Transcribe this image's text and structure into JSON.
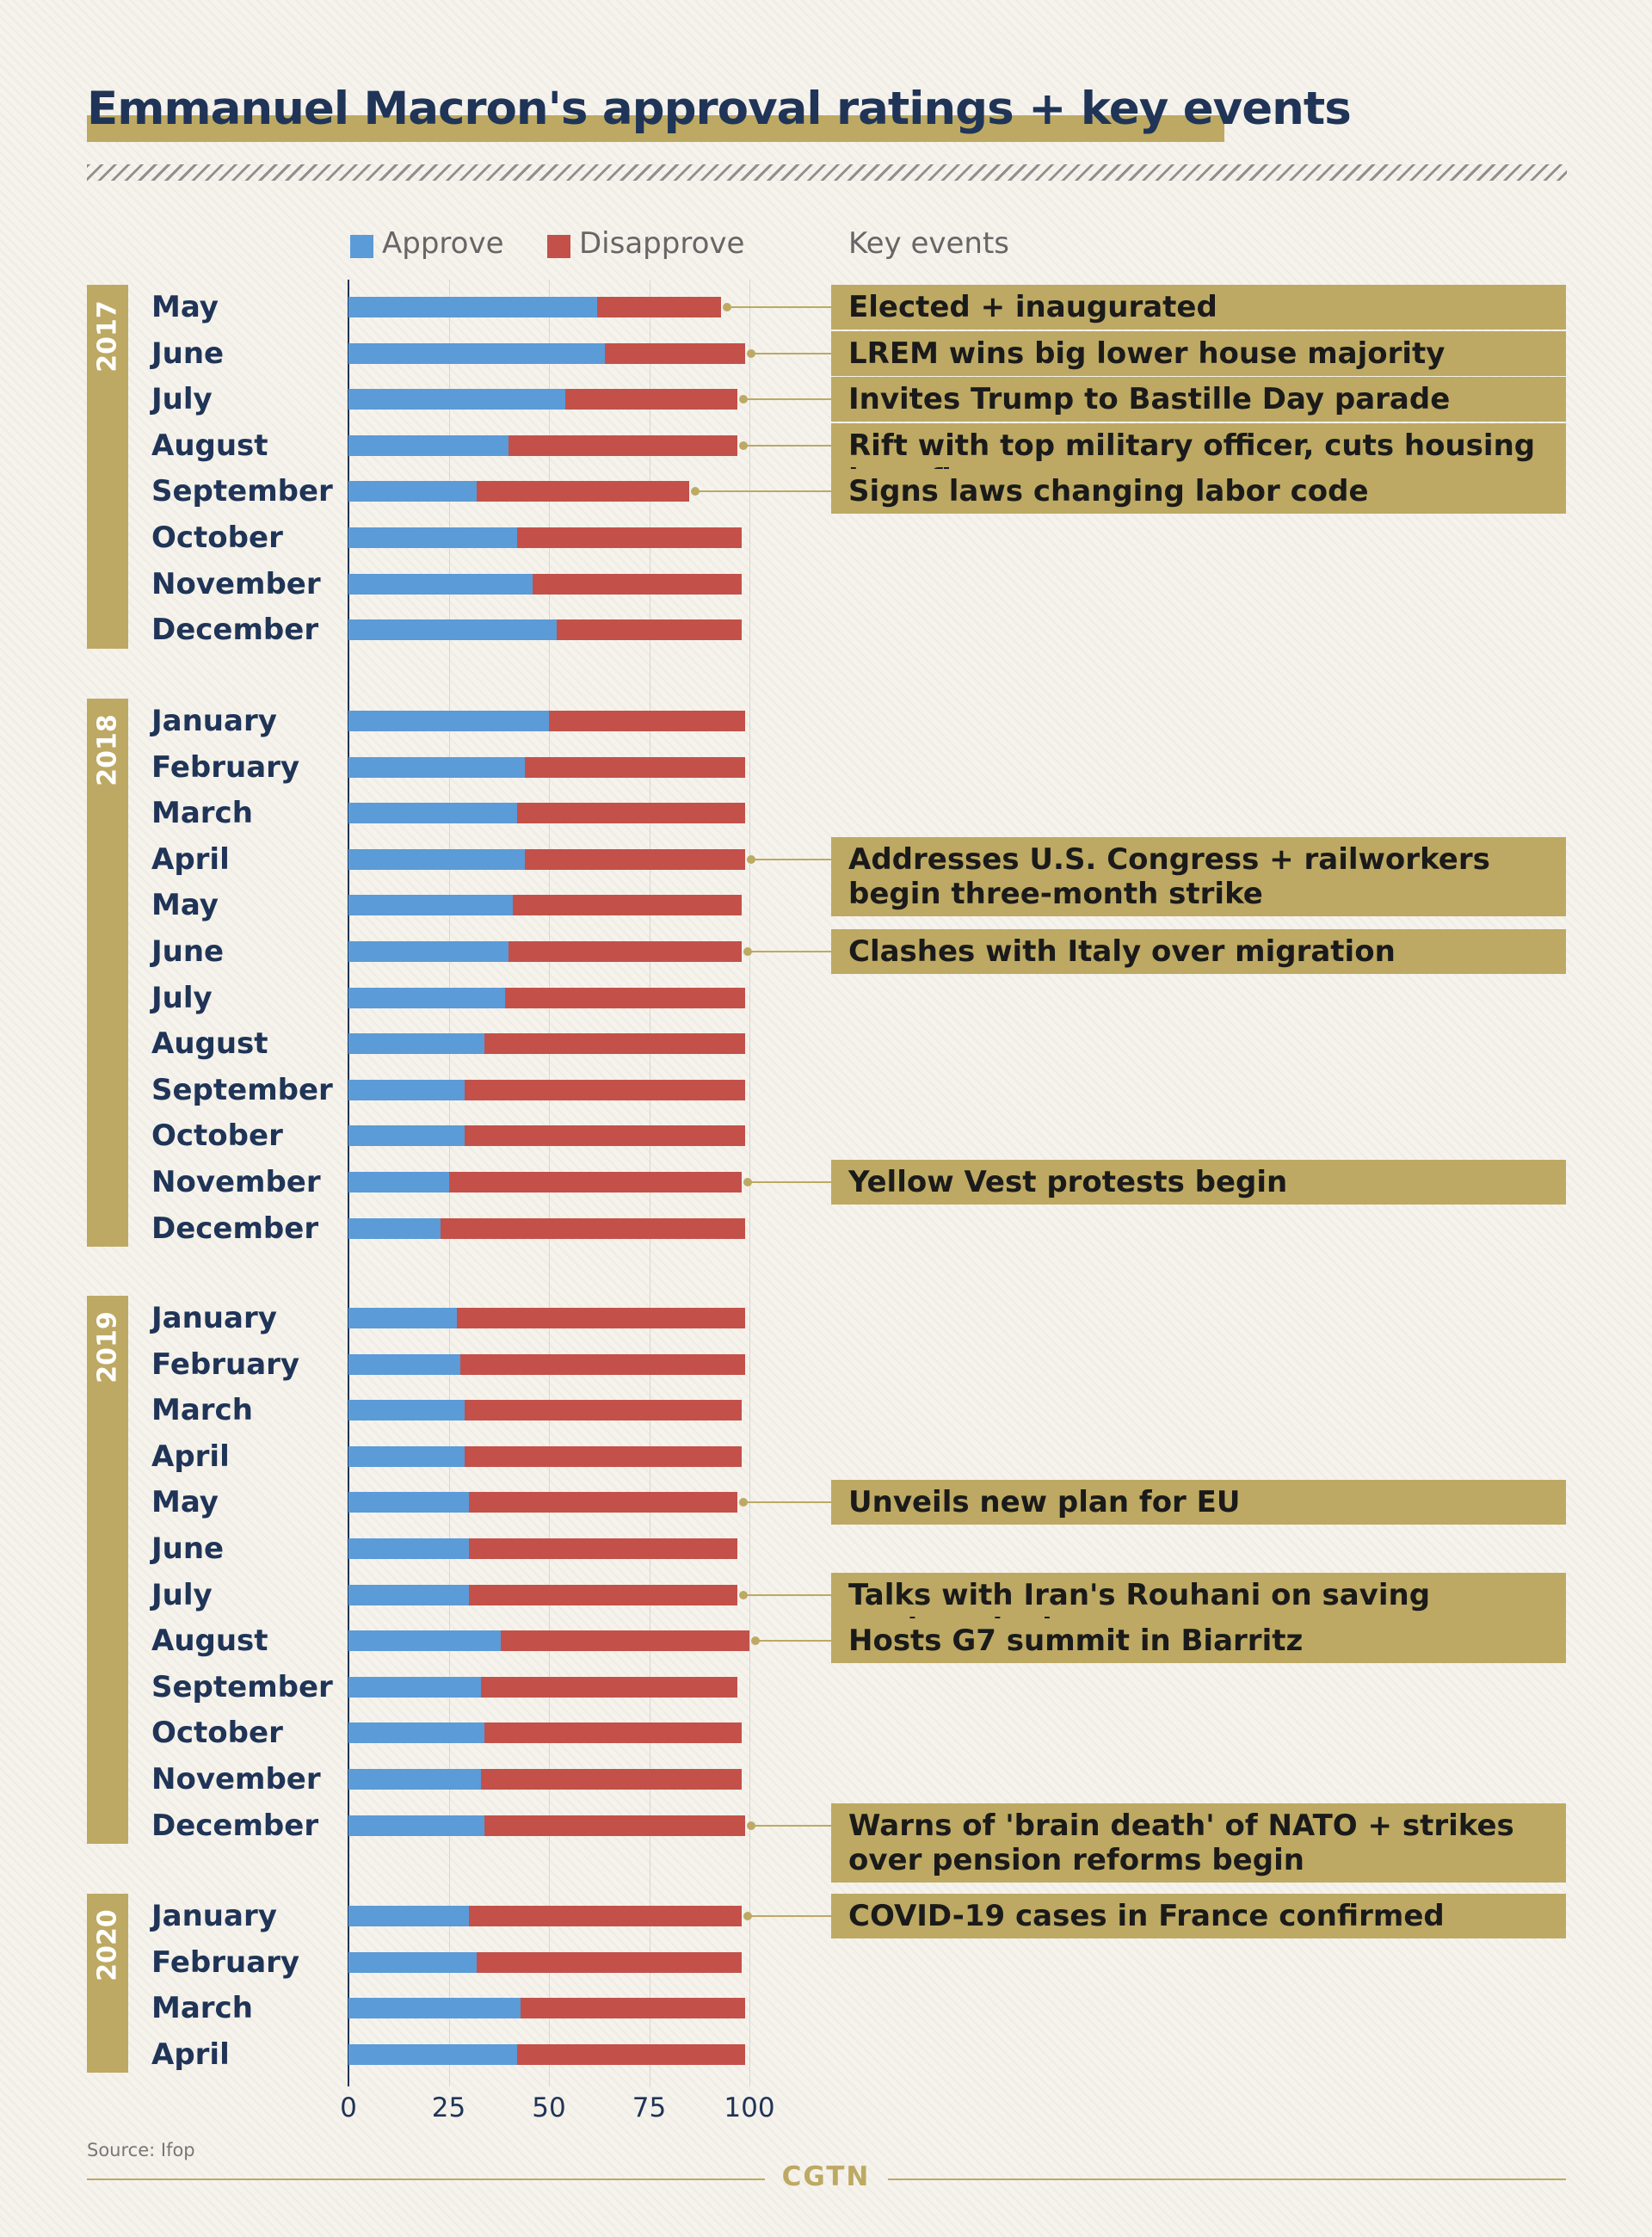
{
  "title": "Emmanuel Macron's approval ratings + key events",
  "legend": {
    "approve": "Approve",
    "disapprove": "Disapprove",
    "events_header": "Key events"
  },
  "colors": {
    "approve": "#5b9bd8",
    "disapprove": "#c3514a",
    "accent": "#bda963",
    "title": "#1f3457"
  },
  "source": "Source: Ifop",
  "brand": "CGTN",
  "chart_data": {
    "type": "bar",
    "stacked": true,
    "orientation": "horizontal",
    "xlim": [
      0,
      100
    ],
    "xticks": [
      "0",
      "25",
      "50",
      "75",
      "100"
    ],
    "series": [
      {
        "name": "Approve",
        "values": [
          62,
          64,
          54,
          40,
          32,
          42,
          46,
          52,
          50,
          44,
          42,
          44,
          41,
          40,
          39,
          34,
          29,
          29,
          25,
          23,
          27,
          28,
          29,
          29,
          30,
          30,
          30,
          38,
          33,
          34,
          33,
          34,
          30,
          32,
          43,
          42
        ]
      },
      {
        "name": "Disapprove",
        "values": [
          31,
          35,
          43,
          57,
          53,
          56,
          52,
          46,
          49,
          55,
          57,
          55,
          57,
          58,
          60,
          65,
          70,
          70,
          73,
          76,
          72,
          71,
          69,
          69,
          67,
          67,
          67,
          62,
          64,
          64,
          65,
          65,
          68,
          66,
          56,
          57
        ]
      }
    ],
    "groups": [
      {
        "year": "2017",
        "months": [
          "May",
          "June",
          "July",
          "August",
          "September",
          "October",
          "November",
          "December"
        ]
      },
      {
        "year": "2018",
        "months": [
          "January",
          "February",
          "March",
          "April",
          "May",
          "June",
          "July",
          "August",
          "September",
          "October",
          "November",
          "December"
        ]
      },
      {
        "year": "2019",
        "months": [
          "January",
          "February",
          "March",
          "April",
          "May",
          "June",
          "July",
          "August",
          "September",
          "October",
          "November",
          "December"
        ]
      },
      {
        "year": "2020",
        "months": [
          "January",
          "February",
          "March",
          "April"
        ]
      }
    ],
    "events": [
      {
        "row": 0,
        "text": "Elected + inaugurated"
      },
      {
        "row": 1,
        "text": "LREM wins big lower house majority"
      },
      {
        "row": 2,
        "text": "Invites Trump to Bastille Day parade"
      },
      {
        "row": 3,
        "text": "Rift with top military officer, cuts housing benefits"
      },
      {
        "row": 4,
        "text": "Signs laws changing labor code"
      },
      {
        "row": 11,
        "text": "Addresses U.S. Congress + railworkers begin three-month strike"
      },
      {
        "row": 13,
        "text": "Clashes with Italy over migration"
      },
      {
        "row": 18,
        "text": "Yellow Vest protests begin"
      },
      {
        "row": 24,
        "text": "Unveils new plan for EU"
      },
      {
        "row": 26,
        "text": "Talks with Iran's Rouhani on saving nuclear deal"
      },
      {
        "row": 27,
        "text": "Hosts G7 summit in Biarritz"
      },
      {
        "row": 31,
        "text": "Warns of 'brain death' of NATO + strikes over pension reforms begin"
      },
      {
        "row": 32,
        "text": "COVID-19 cases in France confirmed"
      }
    ]
  }
}
